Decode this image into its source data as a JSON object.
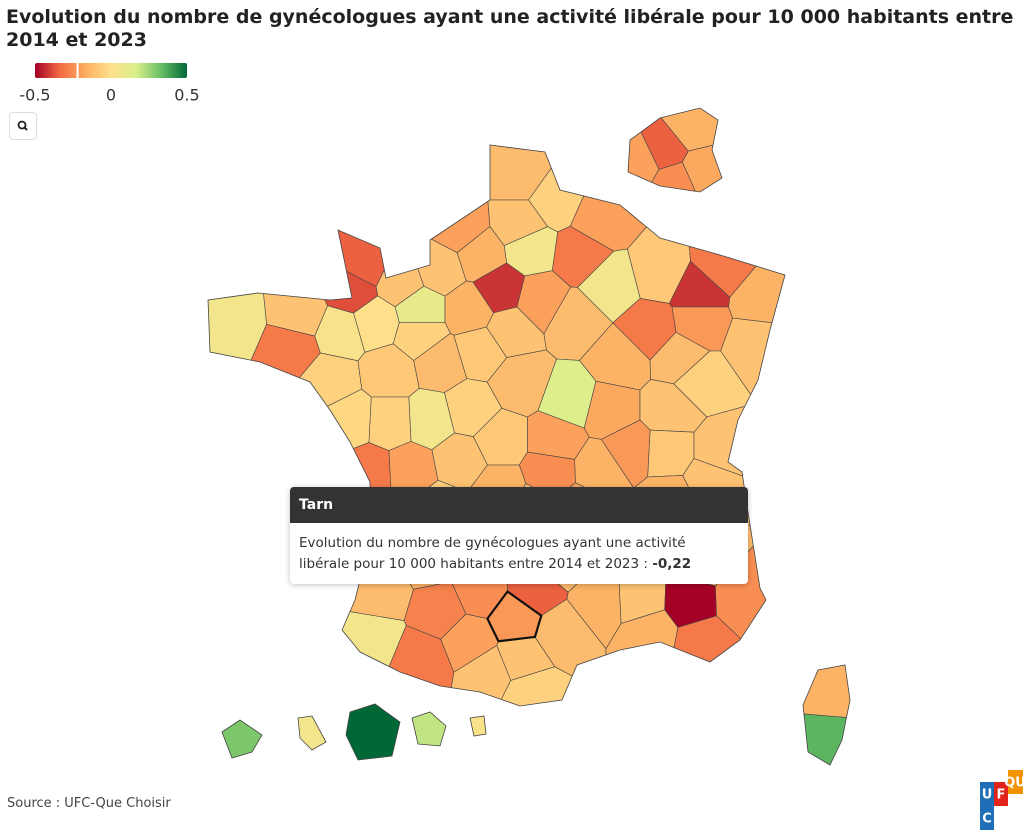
{
  "title": "Evolution du nombre de gynécologues ayant une activité libérale pour 10 000 habitants entre 2014 et 2023",
  "colorbar": {
    "range": [
      -0.5,
      0.5
    ],
    "ticks": [
      -0.5,
      0,
      0.5
    ],
    "colors": [
      "#a50026",
      "#f46d43",
      "#fdae61",
      "#fee08b",
      "#d9ef8b",
      "#66bd63",
      "#006837"
    ]
  },
  "map": {
    "values": [
      -0.12,
      -0.05,
      -0.1,
      0.05,
      -0.2,
      -0.35,
      -0.1,
      -0.38,
      0.1,
      -0.1,
      -0.15,
      -0.42,
      -0.3,
      -0.2,
      -0.08,
      0.05,
      -0.42,
      -0.3,
      -0.15,
      -0.1,
      -0.22,
      -0.3,
      -0.15,
      -0.12,
      0.15,
      -0.2,
      -0.1,
      -0.15,
      -0.05,
      0.0,
      0.02,
      -0.1,
      0.05,
      -0.3,
      -0.05,
      -0.08,
      -0.12,
      -0.08,
      -0.12,
      -0.05,
      0.05,
      -0.05,
      -0.03,
      -0.3,
      -0.2,
      -0.1,
      -0.08,
      -0.2,
      -0.18,
      -0.1,
      -0.05,
      -0.12,
      -0.08,
      -0.22,
      -0.15,
      -0.25,
      -0.15,
      -0.05,
      -0.18,
      -0.12,
      -0.15,
      -0.1,
      -0.1,
      -0.2,
      -0.15,
      -0.1,
      -0.1,
      -0.2,
      -0.1,
      -0.12,
      -0.35,
      -0.22,
      -0.25,
      -0.28,
      0.05,
      -0.3,
      -0.2,
      -0.1,
      -0.1,
      -0.05,
      -0.12,
      -0.15,
      -0.1,
      -0.12,
      -0.5,
      -0.25,
      -0.3,
      -0.15,
      -0.35,
      -0.15,
      -0.18,
      -0.2,
      -0.25,
      -0.15,
      0.35,
      0.3,
      0.05,
      0.5,
      0.2,
      0.02
    ]
  },
  "tooltip": {
    "title": "Tarn",
    "text": "Evolution du nombre de gynécologues ayant une activité libérale pour 10 000 habitants entre 2014 et 2023 :",
    "value": -0.22,
    "value_label": "-0,22"
  },
  "source": "Source : UFC-Que Choisir",
  "logo": [
    "U",
    "F",
    "C",
    "QU"
  ]
}
